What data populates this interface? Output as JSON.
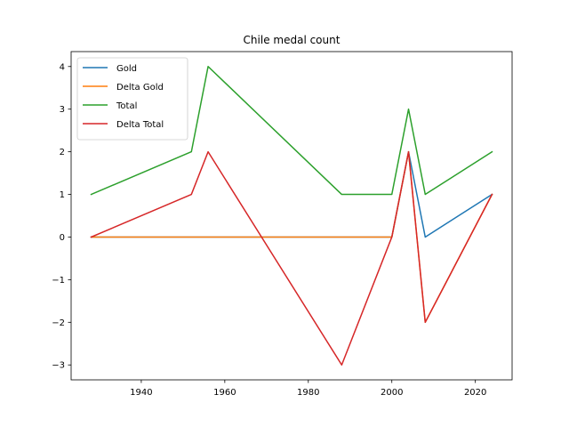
{
  "chart_data": {
    "type": "line",
    "title": "Chile medal count",
    "xlabel": "",
    "ylabel": "",
    "xlim": [
      1923.2,
      2028.8
    ],
    "ylim": [
      -3.35,
      4.35
    ],
    "xticks": [
      1940,
      1960,
      1980,
      2000,
      2020
    ],
    "yticks": [
      4,
      3,
      2,
      1,
      0,
      -1,
      -2,
      -3
    ],
    "ytick_labels": [
      "4",
      "3",
      "2",
      "1",
      "0",
      "−1",
      "−2",
      "−3"
    ],
    "grid": false,
    "legend": "upper-left",
    "x": [
      1928,
      1952,
      1956,
      1988,
      2000,
      2004,
      2008,
      2024
    ],
    "series": [
      {
        "name": "Gold",
        "color": "#1f77b4",
        "values": [
          0,
          0,
          0,
          0,
          0,
          2,
          0,
          1
        ]
      },
      {
        "name": "Delta Gold",
        "color": "#ff7f0e",
        "values": [
          0,
          0,
          0,
          0,
          0,
          2,
          -2,
          1
        ]
      },
      {
        "name": "Total",
        "color": "#2ca02c",
        "values": [
          1,
          2,
          4,
          1,
          1,
          3,
          1,
          2
        ]
      },
      {
        "name": "Delta Total",
        "color": "#d62728",
        "values": [
          0,
          1,
          2,
          -3,
          0,
          2,
          -2,
          1
        ]
      }
    ]
  }
}
